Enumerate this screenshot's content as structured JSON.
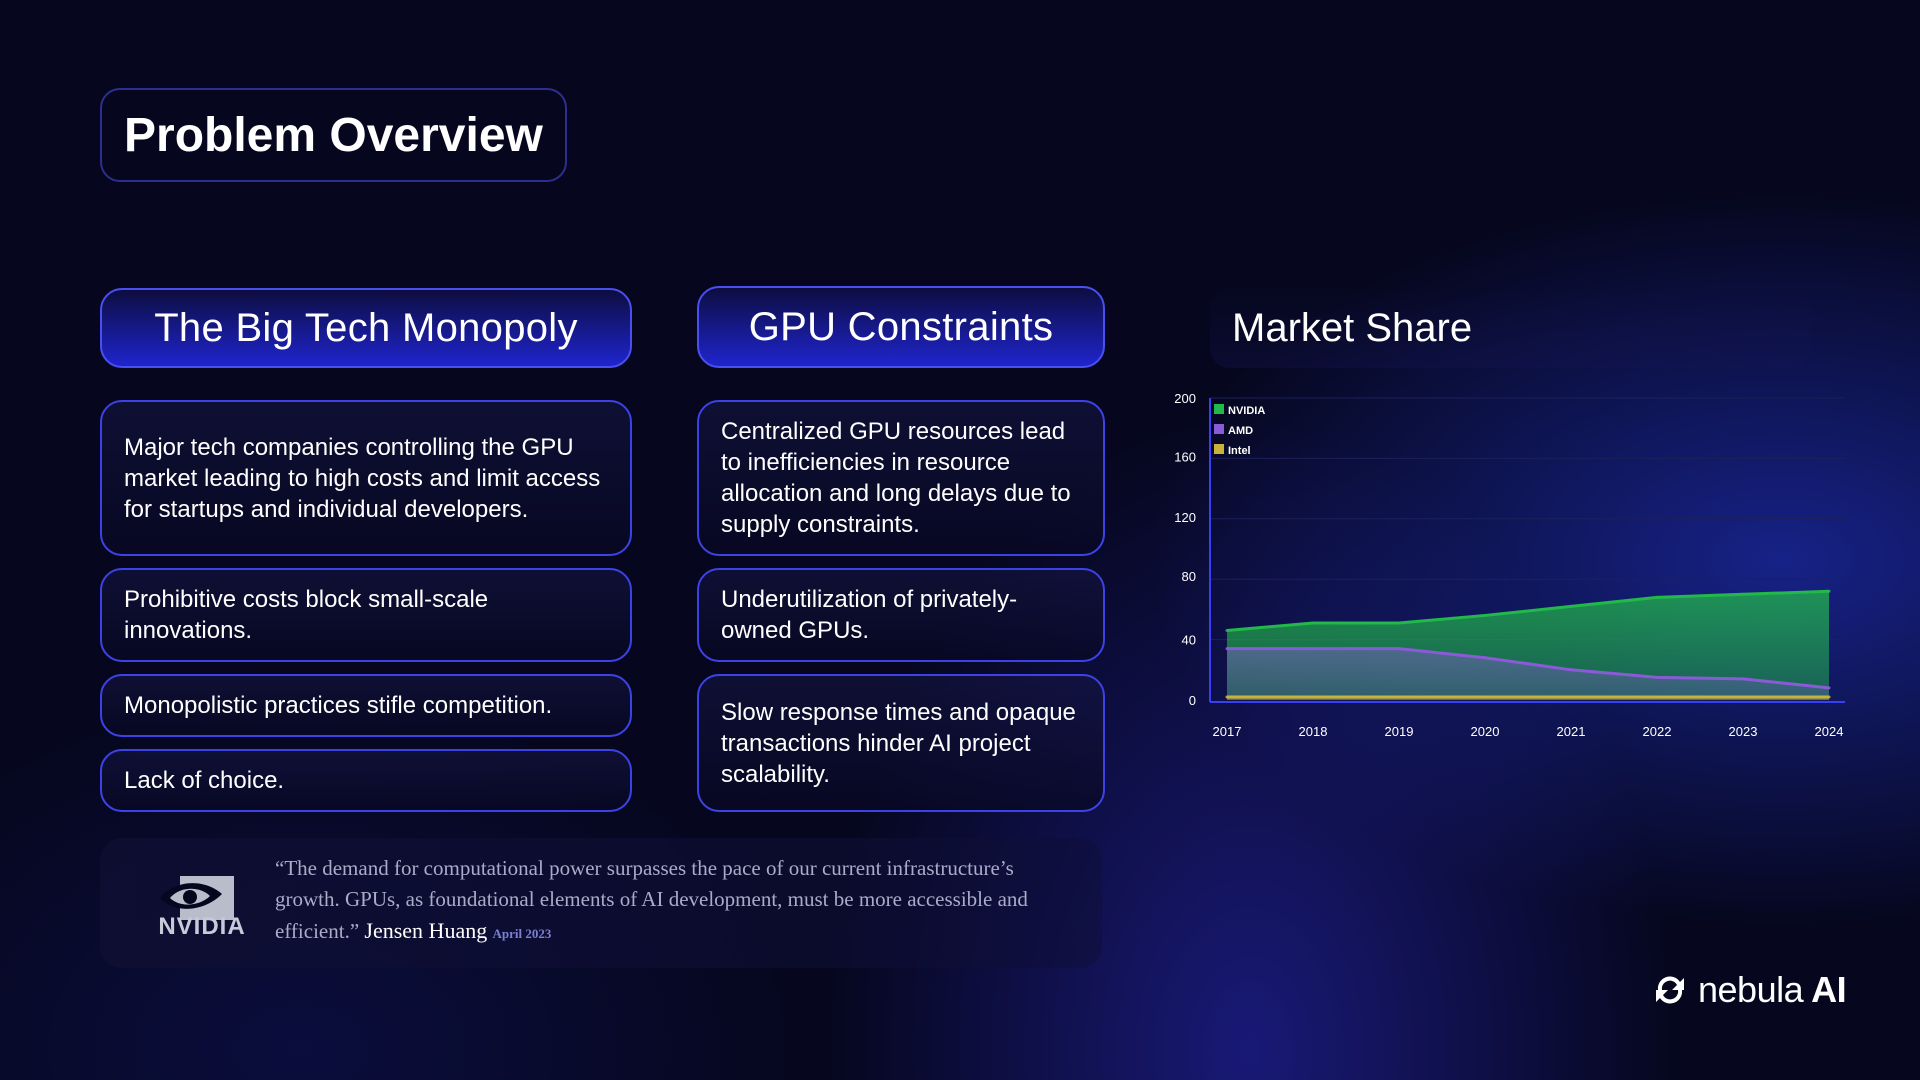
{
  "slide": {
    "title": "Problem Overview"
  },
  "columns": {
    "big_tech": {
      "heading": "The Big Tech Monopoly",
      "points": [
        "Major tech companies controlling the GPU market leading to high costs and limit access for startups and individual developers.",
        "Prohibitive costs block small-scale innovations.",
        "Monopolistic practices stifle competition.",
        "Lack of choice."
      ]
    },
    "gpu": {
      "heading": "GPU Constraints",
      "points": [
        "Centralized GPU resources lead to inefficiencies in resource allocation and long delays due to supply constraints.",
        "Underutilization of privately-owned GPUs.",
        "Slow response times and opaque transactions hinder AI project scalability."
      ]
    }
  },
  "market_share": {
    "heading": "Market Share"
  },
  "quote": {
    "text": "“The demand for computational power surpasses the pace of our current infrastructure’s growth. GPUs, as foundational elements of AI development, must be more accessible and efficient.”",
    "author": "Jensen Huang",
    "date": "April 2023",
    "logo_text": "NVIDIA"
  },
  "brand": {
    "name": "nebula",
    "suffix": "AI"
  },
  "chart_data": {
    "type": "area",
    "title": "Market Share",
    "x": [
      "2017",
      "2018",
      "2019",
      "2020",
      "2021",
      "2022",
      "2023",
      "2024"
    ],
    "y_ticks": [
      0,
      40,
      80,
      120,
      160,
      200
    ],
    "ylim": [
      0,
      200
    ],
    "grid": true,
    "legend_position": "top-left",
    "series": [
      {
        "name": "NVIDIA",
        "color": "#22b84a",
        "values": [
          46,
          51,
          51,
          56,
          62,
          68,
          70,
          72
        ]
      },
      {
        "name": "AMD",
        "color": "#8a5bd6",
        "values": [
          34,
          34,
          34,
          28,
          20,
          15,
          14,
          8
        ]
      },
      {
        "name": "Intel",
        "color": "#c9b23a",
        "values": [
          2,
          2,
          2,
          2,
          2,
          2,
          2,
          2
        ]
      }
    ]
  }
}
